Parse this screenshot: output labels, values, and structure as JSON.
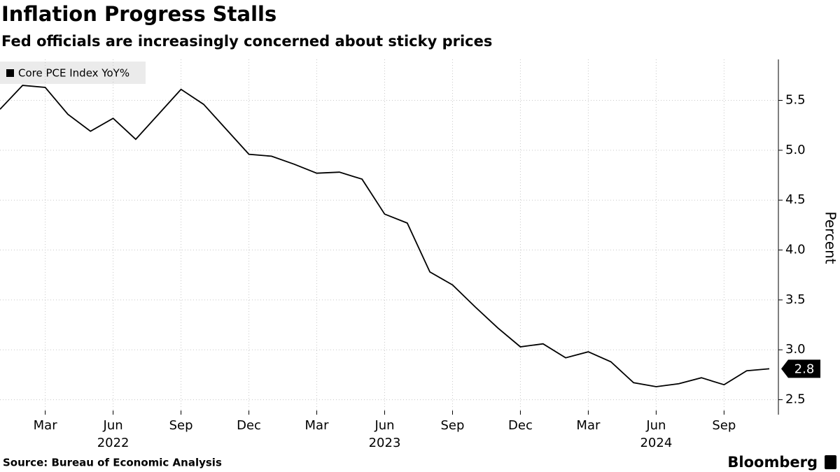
{
  "chart_data": {
    "type": "line",
    "title": "Inflation Progress Stalls",
    "subtitle": "Fed officials are increasingly concerned about sticky prices",
    "y_label": "Percent",
    "source": "Source: Bureau of Economic Analysis",
    "logo": "Bloomberg",
    "x": [
      "2022-01",
      "2022-02",
      "2022-03",
      "2022-04",
      "2022-05",
      "2022-06",
      "2022-07",
      "2022-08",
      "2022-09",
      "2022-10",
      "2022-11",
      "2022-12",
      "2023-01",
      "2023-02",
      "2023-03",
      "2023-04",
      "2023-05",
      "2023-06",
      "2023-07",
      "2023-08",
      "2023-09",
      "2023-10",
      "2023-11",
      "2023-12",
      "2024-01",
      "2024-02",
      "2024-03",
      "2024-04",
      "2024-05",
      "2024-06",
      "2024-07",
      "2024-08",
      "2024-09",
      "2024-10",
      "2024-11"
    ],
    "series": [
      {
        "name": "Core PCE Index YoY%",
        "color": "#000000",
        "values": [
          5.41,
          5.65,
          5.63,
          5.36,
          5.19,
          5.32,
          5.11,
          5.36,
          5.61,
          5.46,
          5.21,
          4.96,
          4.94,
          4.86,
          4.77,
          4.78,
          4.71,
          4.36,
          4.27,
          3.78,
          3.65,
          3.43,
          3.22,
          3.03,
          3.06,
          2.92,
          2.98,
          2.88,
          2.67,
          2.63,
          2.66,
          2.72,
          2.65,
          2.79,
          2.81
        ],
        "value_labels": [
          null,
          null,
          null,
          null,
          null,
          null,
          null,
          null,
          null,
          null,
          null,
          null,
          null,
          null,
          null,
          null,
          null,
          null,
          null,
          null,
          null,
          null,
          null,
          null,
          null,
          null,
          null,
          null,
          null,
          null,
          null,
          null,
          null,
          null,
          "2.8"
        ]
      }
    ],
    "xlim": [
      "2022-01",
      "2024-11"
    ],
    "xticks": [
      {
        "value": "2022-03",
        "label": "Mar"
      },
      {
        "value": "2022-06",
        "label": "Jun"
      },
      {
        "value": "2022-09",
        "label": "Sep"
      },
      {
        "value": "2022-12",
        "label": "Dec"
      },
      {
        "value": "2023-03",
        "label": "Mar"
      },
      {
        "value": "2023-06",
        "label": "Jun"
      },
      {
        "value": "2023-09",
        "label": "Sep"
      },
      {
        "value": "2023-12",
        "label": "Dec"
      },
      {
        "value": "2024-03",
        "label": "Mar"
      },
      {
        "value": "2024-06",
        "label": "Jun"
      },
      {
        "value": "2024-09",
        "label": "Sep"
      }
    ],
    "xtick_years": [
      {
        "value": "2022-06",
        "label": "2022"
      },
      {
        "value": "2023-06",
        "label": "2023"
      },
      {
        "value": "2024-06",
        "label": "2024"
      }
    ],
    "ylim": [
      2.35,
      5.91
    ],
    "yticks": [
      2.5,
      {
        "value": 3,
        "label": "3.0"
      },
      3.5,
      {
        "value": 4,
        "label": "4.0"
      },
      4.5,
      {
        "value": 5,
        "label": "5.0"
      },
      5.5
    ],
    "grid": true
  }
}
